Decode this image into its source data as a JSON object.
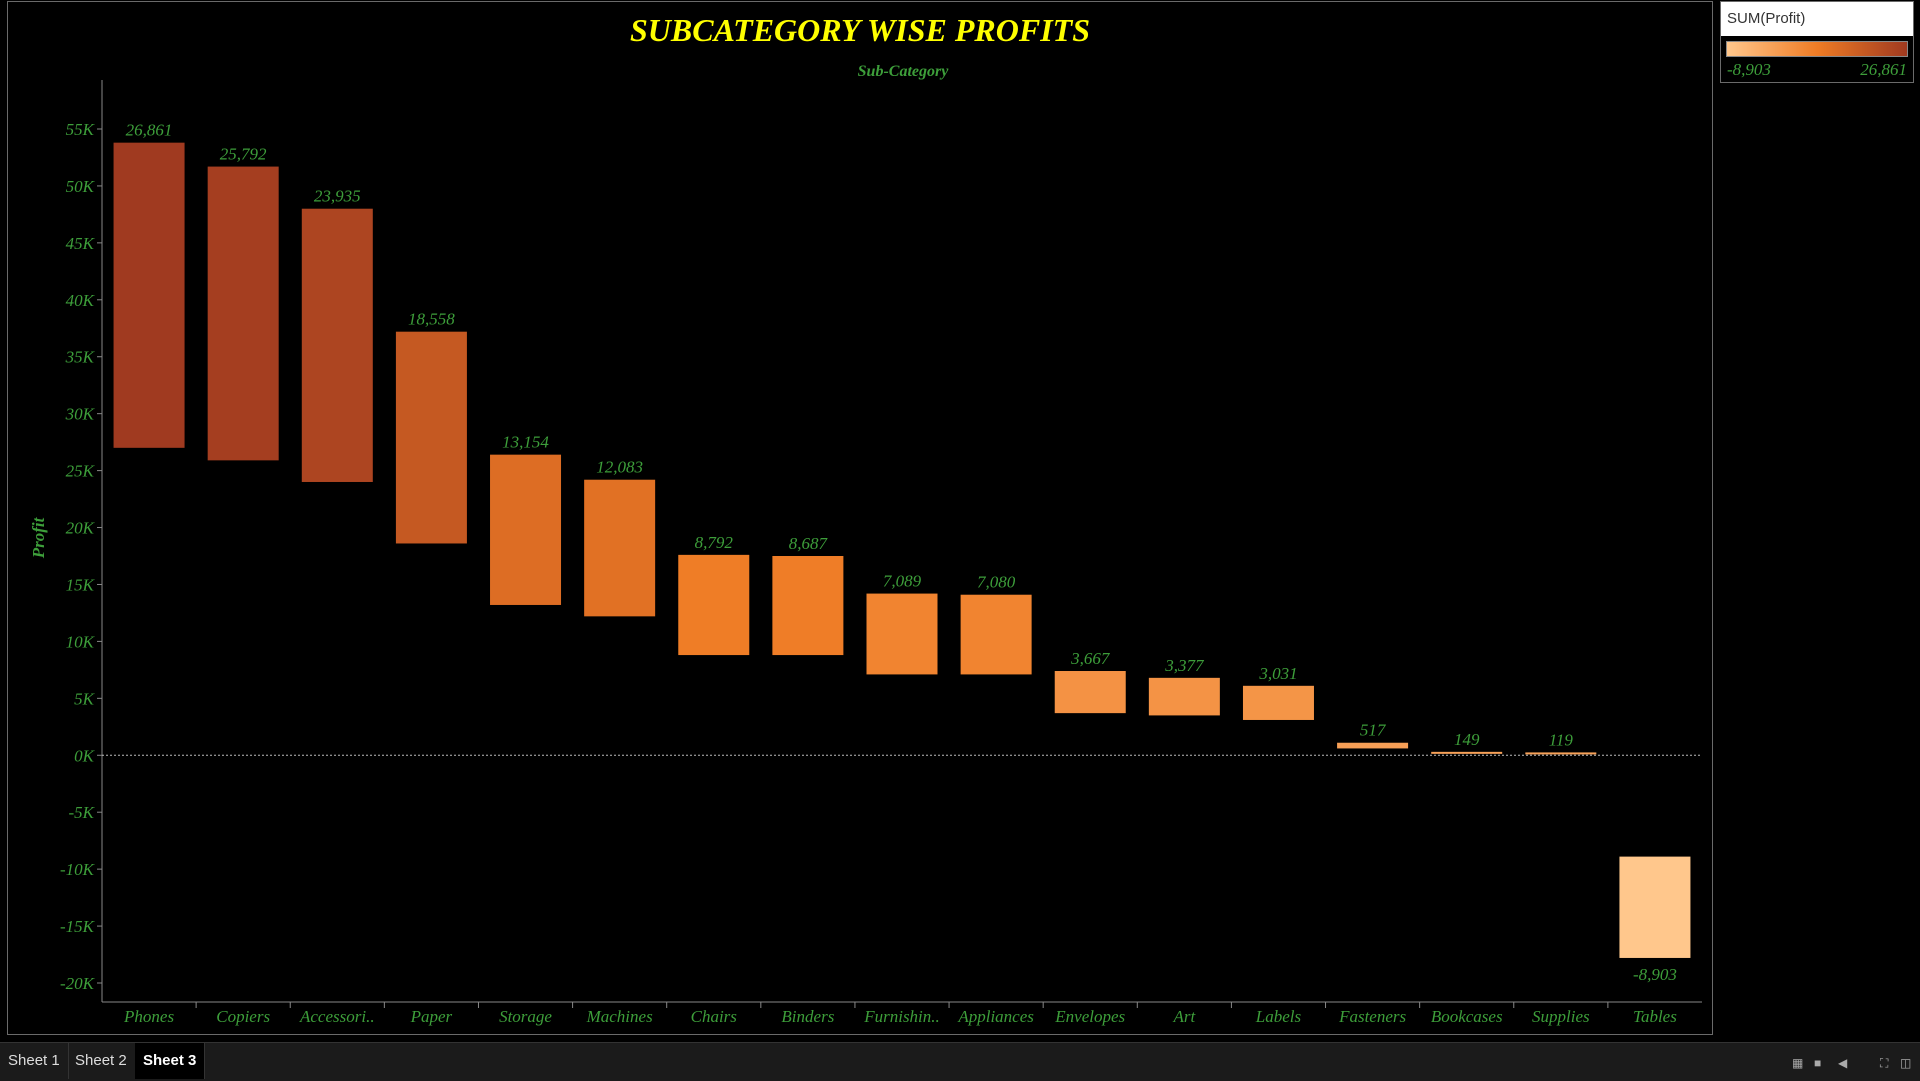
{
  "colors": {
    "title": "#ffff00",
    "text_green": "#3d9e3a",
    "ramp_low": "#ffc78c",
    "ramp_mid": "#ef7c25",
    "ramp_high": "#a03a20"
  },
  "chart_data": {
    "type": "bar",
    "title": "SUBCATEGORY WISE PROFITS",
    "x_header": "Sub-Category",
    "ylabel": "Profit",
    "ylim": [
      -20000,
      55000
    ],
    "yticks": [
      {
        "value": 55000,
        "label": "55K"
      },
      {
        "value": 50000,
        "label": "50K"
      },
      {
        "value": 45000,
        "label": "45K"
      },
      {
        "value": 40000,
        "label": "40K"
      },
      {
        "value": 35000,
        "label": "35K"
      },
      {
        "value": 30000,
        "label": "30K"
      },
      {
        "value": 25000,
        "label": "25K"
      },
      {
        "value": 20000,
        "label": "20K"
      },
      {
        "value": 15000,
        "label": "15K"
      },
      {
        "value": 10000,
        "label": "10K"
      },
      {
        "value": 5000,
        "label": "5K"
      },
      {
        "value": 0,
        "label": "0K"
      },
      {
        "value": -5000,
        "label": "-5K"
      },
      {
        "value": -10000,
        "label": "-10K"
      },
      {
        "value": -15000,
        "label": "-15K"
      },
      {
        "value": -20000,
        "label": "-20K"
      }
    ],
    "categories": [
      "Phones",
      "Copiers",
      "Accessori..",
      "Paper",
      "Storage",
      "Machines",
      "Chairs",
      "Binders",
      "Furnishin..",
      "Appliances",
      "Envelopes",
      "Art",
      "Labels",
      "Fasteners",
      "Bookcases",
      "Supplies",
      "Tables"
    ],
    "values": [
      26861,
      25792,
      23935,
      18558,
      13154,
      12083,
      8792,
      8687,
      7089,
      7080,
      3667,
      3377,
      3031,
      517,
      149,
      119,
      -8903
    ],
    "bar_ranges": [
      [
        27000,
        53800
      ],
      [
        25900,
        51700
      ],
      [
        24000,
        48000
      ],
      [
        18600,
        37200
      ],
      [
        13200,
        26400
      ],
      [
        12200,
        24200
      ],
      [
        8800,
        17600
      ],
      [
        8800,
        17500
      ],
      [
        7100,
        14200
      ],
      [
        7100,
        14100
      ],
      [
        3700,
        7400
      ],
      [
        3500,
        6800
      ],
      [
        3100,
        6100
      ],
      [
        600,
        1100
      ],
      [
        150,
        300
      ],
      [
        100,
        250
      ],
      [
        -17800,
        -8900
      ]
    ],
    "data_labels": [
      "26,861",
      "25,792",
      "23,935",
      "18,558",
      "13,154",
      "12,083",
      "8,792",
      "8,687",
      "7,089",
      "7,080",
      "3,667",
      "3,377",
      "3,031",
      "517",
      "149",
      "119",
      "-8,903"
    ],
    "zero_line": true,
    "grid": false,
    "legend": {
      "title": "SUM(Profit)",
      "min_label": "-8,903",
      "max_label": "26,861",
      "placement": "top-right"
    }
  },
  "tabs": [
    {
      "label": "Sheet 1",
      "active": false
    },
    {
      "label": "Sheet 2",
      "active": false
    },
    {
      "label": "Sheet 3",
      "active": true
    }
  ]
}
